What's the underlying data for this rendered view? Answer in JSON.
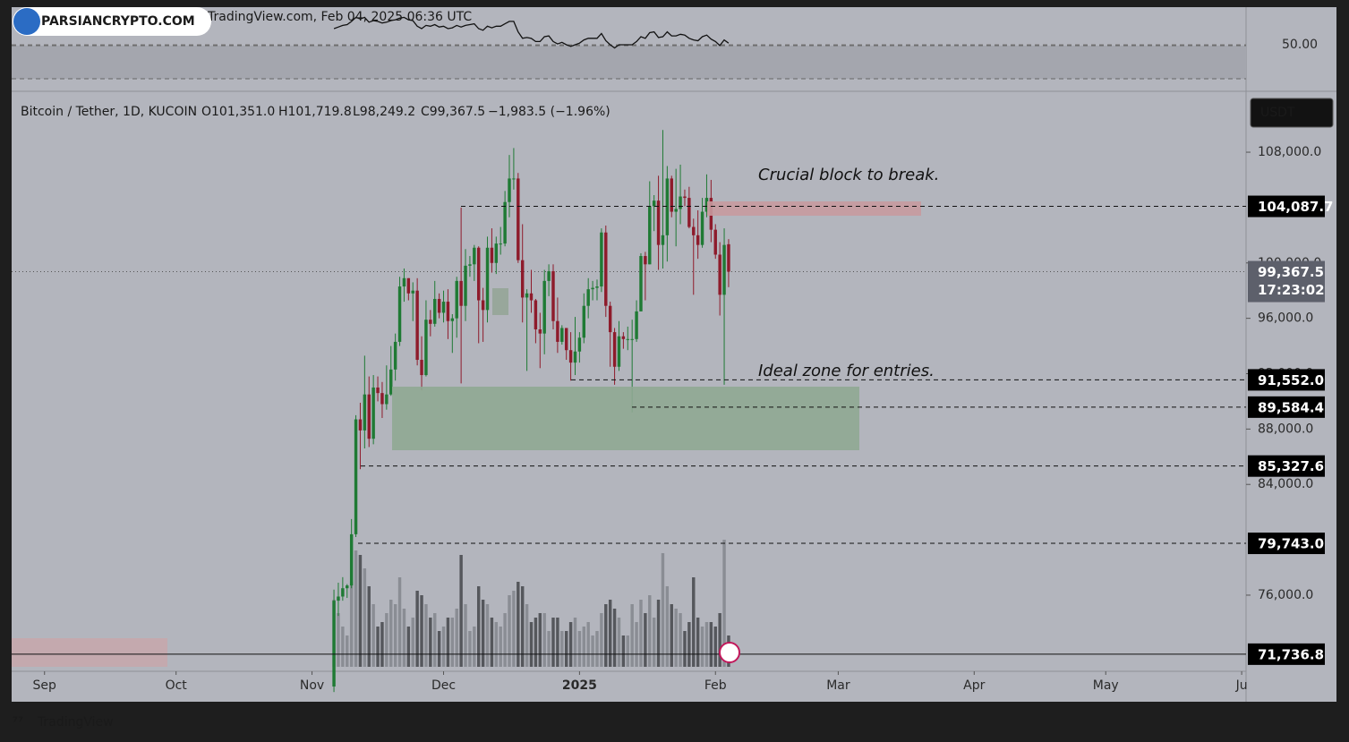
{
  "header": {
    "source": "TradingView.com, Feb 04, 2025 06:36 UTC",
    "watermark": "PARSIANCRYPTO.COM",
    "footer": "TradingView"
  },
  "chart_data": {
    "type": "candlestick",
    "title": "Bitcoin / Tether, 1D, KUCOIN",
    "ohlc_legend": {
      "open": "O101,351.0",
      "high": "H101,719.8",
      "low": "L98,249.2",
      "close": "C99,367.5",
      "change": "−1,983.5 (−1.96%)"
    },
    "currency": "USDT",
    "annotations": [
      "Crucial block to break.",
      "Ideal zone for entries."
    ],
    "colors": {
      "up": "#1f7a34",
      "down": "#8e1b2b",
      "vol_up": "#8a8d94",
      "vol_down": "#55575c",
      "rsi": "#111111"
    },
    "xlim": [
      -73.5,
      208
    ],
    "xticks": [
      {
        "value": -66,
        "label": "Sep"
      },
      {
        "value": -36,
        "label": "Oct"
      },
      {
        "value": -5,
        "label": "Nov"
      },
      {
        "value": 25,
        "label": "Dec"
      },
      {
        "value": 56,
        "label": "2025"
      },
      {
        "value": 87,
        "label": "Feb"
      },
      {
        "value": 115,
        "label": "Mar"
      },
      {
        "value": 146,
        "label": "Apr"
      },
      {
        "value": 176,
        "label": "May"
      },
      {
        "value": 207,
        "label": "Ju"
      }
    ],
    "ylim": [
      70500,
      112400
    ],
    "yticks": [
      {
        "value": 76000,
        "label": "76,000.0"
      },
      {
        "value": 84000,
        "label": "84,000.0"
      },
      {
        "value": 88000,
        "label": "88,000.0"
      },
      {
        "value": 92000,
        "label": "92,000.0"
      },
      {
        "value": 96000,
        "label": "96,000.0"
      },
      {
        "value": 100000,
        "label": "100,000.0"
      },
      {
        "value": 108000,
        "label": "108,000.0"
      }
    ],
    "open": [
      69400,
      75600,
      75900,
      76500,
      76700,
      80400,
      88700,
      87900,
      90500,
      87300,
      91000,
      90600,
      89800,
      90500,
      92300,
      94300,
      98300,
      98900,
      97800,
      98000,
      93000,
      91900,
      95900,
      95600,
      97400,
      96400,
      97200,
      95800,
      96000,
      98700,
      96900,
      99800,
      99900,
      101100,
      97300,
      96600,
      101100,
      100000,
      101400,
      101400,
      104400,
      106100,
      106100,
      100200,
      97500,
      97800,
      97300,
      95200,
      94900,
      98700,
      99400,
      95800,
      94300,
      95300,
      93700,
      92800,
      93600,
      94600,
      96900,
      98100,
      98200,
      98300,
      102200,
      96900,
      95000,
      92500,
      94700,
      94500,
      94500,
      94500,
      96500,
      100500,
      99900,
      104100,
      104500,
      101300,
      102000,
      106100,
      103700,
      103900,
      104800,
      104700,
      102600,
      102000,
      101300,
      103700,
      104700,
      102400,
      100600,
      97700,
      101351
    ],
    "high": [
      76400,
      76900,
      77300,
      76800,
      81500,
      89000,
      89900,
      93300,
      91800,
      91900,
      91800,
      91400,
      92600,
      94000,
      94900,
      99000,
      99600,
      98900,
      98600,
      98900,
      94700,
      97300,
      96600,
      98700,
      97800,
      98000,
      98100,
      96300,
      99000,
      104000,
      101000,
      100500,
      101300,
      101200,
      98200,
      101900,
      102500,
      101900,
      102600,
      105200,
      107800,
      108300,
      106500,
      102800,
      98100,
      99500,
      97400,
      96400,
      99500,
      99900,
      99900,
      97500,
      95500,
      95300,
      95000,
      96100,
      95000,
      97800,
      98900,
      98700,
      98800,
      102500,
      102700,
      97200,
      95300,
      95800,
      95000,
      95400,
      95900,
      97300,
      100700,
      100800,
      105900,
      104900,
      106300,
      109600,
      107000,
      106300,
      106800,
      107100,
      105300,
      105500,
      103200,
      103800,
      104700,
      106400,
      106000,
      102800,
      101500,
      102500,
      101719.8
    ],
    "low": [
      69000,
      74500,
      75600,
      75800,
      76500,
      80200,
      85100,
      86600,
      86700,
      86900,
      90000,
      88800,
      89400,
      90400,
      91500,
      94000,
      97200,
      97300,
      95800,
      92600,
      90800,
      91800,
      94700,
      95400,
      96000,
      95700,
      94500,
      93500,
      94600,
      91300,
      95800,
      99000,
      98700,
      94200,
      94300,
      95700,
      99300,
      99200,
      100600,
      101200,
      103300,
      105300,
      100000,
      95700,
      92200,
      96400,
      94200,
      92400,
      93400,
      97600,
      95200,
      93500,
      94100,
      93000,
      91500,
      91900,
      92800,
      94200,
      96000,
      97300,
      97300,
      97900,
      96100,
      92500,
      91200,
      92200,
      93800,
      93700,
      89200,
      94300,
      96500,
      97300,
      99900,
      102300,
      99500,
      99600,
      100100,
      103300,
      101200,
      102800,
      104100,
      102500,
      97700,
      100300,
      101100,
      103300,
      101500,
      100300,
      96200,
      91200,
      98249.2
    ],
    "close": [
      75600,
      75900,
      76500,
      76700,
      80400,
      88700,
      87900,
      90500,
      87300,
      91000,
      90600,
      89800,
      90500,
      92300,
      94300,
      98300,
      98900,
      97800,
      98000,
      93000,
      91900,
      95900,
      95600,
      97400,
      96400,
      97200,
      95800,
      96000,
      98700,
      96900,
      99800,
      99900,
      101100,
      97300,
      96600,
      101100,
      100000,
      101400,
      101400,
      104400,
      106100,
      106100,
      100200,
      97500,
      97800,
      97300,
      95200,
      94900,
      98700,
      99400,
      95800,
      94300,
      95300,
      93700,
      92800,
      93600,
      94600,
      96900,
      98100,
      98200,
      98300,
      102200,
      96900,
      95000,
      92500,
      94700,
      94500,
      94500,
      94500,
      96500,
      100500,
      99900,
      104100,
      104500,
      101300,
      102000,
      106100,
      103700,
      103900,
      104800,
      104700,
      102600,
      102000,
      101300,
      103700,
      104700,
      102400,
      100600,
      97700,
      101300,
      99367.5
    ],
    "volume": [
      75,
      60,
      45,
      35,
      95,
      130,
      125,
      110,
      90,
      70,
      45,
      50,
      60,
      75,
      70,
      100,
      65,
      45,
      55,
      85,
      80,
      70,
      55,
      60,
      40,
      45,
      55,
      55,
      65,
      125,
      70,
      40,
      45,
      90,
      75,
      70,
      55,
      50,
      45,
      60,
      80,
      85,
      95,
      90,
      70,
      50,
      55,
      60,
      60,
      40,
      55,
      55,
      40,
      40,
      50,
      55,
      40,
      45,
      50,
      35,
      40,
      60,
      70,
      75,
      65,
      55,
      35,
      35,
      70,
      50,
      75,
      60,
      80,
      55,
      75,
      127,
      90,
      70,
      65,
      60,
      40,
      50,
      100,
      55,
      45,
      50,
      50,
      45,
      60,
      142,
      35
    ],
    "rsi": [
      70,
      72,
      74,
      75,
      79,
      84,
      82,
      84,
      78,
      80,
      79,
      77,
      78,
      80,
      81,
      83,
      84,
      81,
      80,
      73,
      70,
      74,
      73,
      75,
      72,
      73,
      70,
      71,
      74,
      72,
      74,
      75,
      76,
      70,
      68,
      73,
      71,
      73,
      73,
      76,
      79,
      79,
      66,
      58,
      59,
      58,
      54,
      54,
      60,
      61,
      54,
      51,
      53,
      50,
      48,
      50,
      52,
      56,
      58,
      58,
      58,
      64,
      55,
      50,
      46,
      50,
      50,
      50,
      50,
      54,
      60,
      58,
      65,
      66,
      59,
      60,
      66,
      61,
      61,
      63,
      62,
      58,
      56,
      55,
      60,
      62,
      57,
      54,
      49,
      56,
      52
    ],
    "rsi_yticks": [
      {
        "value": 50,
        "label": "50.00"
      }
    ],
    "rsi_ylim": [
      0,
      100
    ],
    "levels": [
      {
        "value": 104087.7,
        "label": "104,087.7"
      },
      {
        "value": 91552.0,
        "label": "91,552.0"
      },
      {
        "value": 89584.4,
        "label": "89,584.4"
      },
      {
        "value": 85327.6,
        "label": "85,327.6"
      },
      {
        "value": 79743.0,
        "label": "79,743.0"
      },
      {
        "value": 71736.8,
        "label": "71,736.8"
      }
    ],
    "last": {
      "value": 99367.5,
      "label": "99,367.5",
      "countdown": "17:23:02"
    }
  }
}
